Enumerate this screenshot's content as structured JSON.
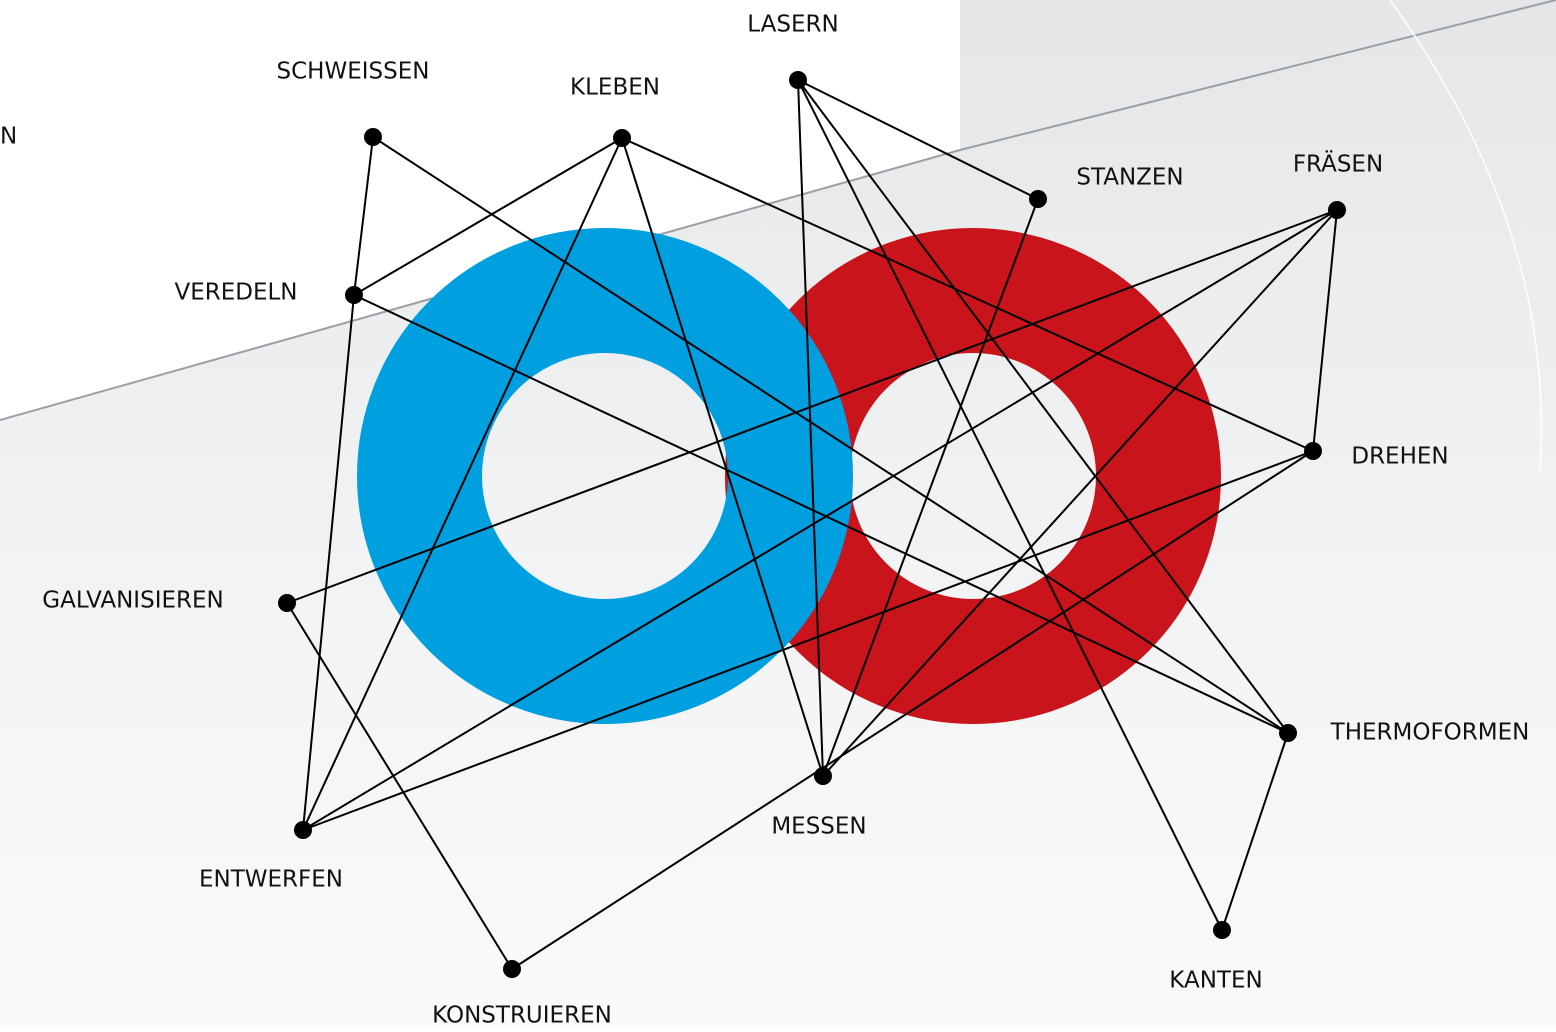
{
  "nodes": [
    {
      "label": "LASERN"
    },
    {
      "label": "SCHWEISSEN"
    },
    {
      "label": "KLEBEN"
    },
    {
      "label": "STANZEN"
    },
    {
      "label": "FRÄSEN"
    },
    {
      "label": "VEREDELN"
    },
    {
      "label": "DREHEN"
    },
    {
      "label": "GALVANISIEREN"
    },
    {
      "label": "THERMOFORMEN"
    },
    {
      "label": "MESSEN"
    },
    {
      "label": "ENTWERFEN"
    },
    {
      "label": "KONSTRUIEREN"
    },
    {
      "label": "KANTEN"
    }
  ],
  "cut_label": "N"
}
